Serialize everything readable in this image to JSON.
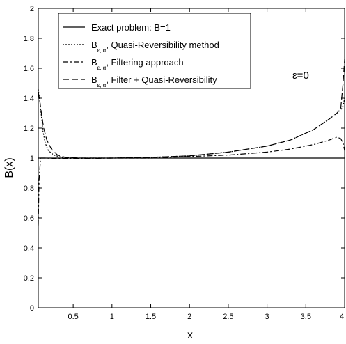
{
  "chart_data": {
    "type": "line",
    "xlabel": "x",
    "ylabel": "B(x)",
    "xlim": [
      0.05,
      4
    ],
    "ylim": [
      0,
      2
    ],
    "x_ticks": [
      0.5,
      1,
      1.5,
      2,
      2.5,
      3,
      3.5,
      4
    ],
    "x_tick_labels": [
      "0.5",
      "1",
      "1.5",
      "2",
      "2.5",
      "3",
      "3.5",
      "4"
    ],
    "y_ticks": [
      0,
      0.2,
      0.4,
      0.6,
      0.8,
      1,
      1.2,
      1.4,
      1.6,
      1.8,
      2
    ],
    "y_tick_labels": [
      "0",
      "0.2",
      "0.4",
      "0.6",
      "0.8",
      "1",
      "1.2",
      "1.4",
      "1.6",
      "1.8",
      "2"
    ],
    "grid": false,
    "legend_position": "top-left",
    "annotation": "ε=0",
    "series": [
      {
        "name": "Exact problem: B=1",
        "legend_base": "Exact problem: B=1",
        "legend_sub": "",
        "legend_rest": "",
        "style": "solid",
        "color": "#000000",
        "x": [
          0.05,
          4.0
        ],
        "y": [
          1.0,
          1.0
        ]
      },
      {
        "name": "B ε,α, Quasi-Reversibility method",
        "legend_base": "B",
        "legend_sub": "ε, α",
        "legend_rest": ", Quasi-Reversibility method",
        "style": "dotted",
        "color": "#000000",
        "x": [
          0.05,
          0.07,
          0.09,
          0.11,
          0.14,
          0.18,
          0.25,
          0.35,
          0.5,
          1.0,
          1.5,
          2.0,
          2.5,
          3.0,
          3.3,
          3.6,
          3.8,
          3.9,
          3.95,
          3.98,
          4.0
        ],
        "y": [
          1.46,
          1.38,
          1.28,
          1.18,
          1.1,
          1.05,
          1.02,
          1.005,
          1.0,
          1.0,
          1.005,
          1.015,
          1.04,
          1.08,
          1.12,
          1.19,
          1.26,
          1.3,
          1.32,
          1.35,
          1.4
        ]
      },
      {
        "name": "B ε,α, Filtering approach",
        "legend_base": "B",
        "legend_sub": "ε, α",
        "legend_rest": ", Filtering approach",
        "style": "dashdot",
        "color": "#000000",
        "x": [
          0.05,
          0.06,
          0.08,
          0.1,
          0.15,
          0.3,
          0.5,
          1.0,
          1.5,
          2.0,
          2.5,
          3.0,
          3.3,
          3.6,
          3.8,
          3.9,
          3.95,
          3.98,
          4.0
        ],
        "y": [
          0.55,
          0.85,
          1.0,
          1.0,
          1.0,
          0.995,
          0.995,
          1.0,
          1.0,
          1.01,
          1.02,
          1.04,
          1.06,
          1.09,
          1.12,
          1.14,
          1.13,
          1.1,
          1.05
        ]
      },
      {
        "name": "B ε,α, Filter + Quasi-Reversibility",
        "legend_base": "B",
        "legend_sub": "ε, α",
        "legend_rest": ", Filter + Quasi-Reversibility",
        "style": "dashed",
        "color": "#000000",
        "x": [
          0.05,
          0.07,
          0.09,
          0.12,
          0.16,
          0.22,
          0.3,
          0.4,
          0.6,
          1.0,
          1.5,
          2.0,
          2.5,
          3.0,
          3.3,
          3.6,
          3.8,
          3.9,
          3.95,
          3.98,
          4.0
        ],
        "y": [
          1.44,
          1.38,
          1.3,
          1.2,
          1.12,
          1.06,
          1.02,
          1.005,
          1.0,
          1.0,
          1.005,
          1.015,
          1.04,
          1.08,
          1.12,
          1.19,
          1.26,
          1.3,
          1.33,
          1.5,
          1.66
        ]
      }
    ]
  }
}
